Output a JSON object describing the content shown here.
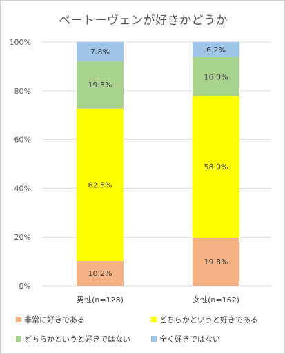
{
  "chart_data": {
    "type": "bar",
    "stacked": true,
    "percent": true,
    "title": "ベートーヴェンが好きかどうか",
    "categories": [
      "男性(n=128)",
      "女性(n=162)"
    ],
    "ylim": [
      0,
      100
    ],
    "yticks": [
      "0%",
      "20%",
      "40%",
      "60%",
      "80%",
      "100%"
    ],
    "grid": true,
    "legend_position": "bottom",
    "series": [
      {
        "name": "非常に好きである",
        "values": [
          10.2,
          19.8
        ],
        "labels": [
          "10.2%",
          "19.8%"
        ],
        "color": "#f4b183"
      },
      {
        "name": "どちらかというと好きである",
        "values": [
          62.5,
          58.0
        ],
        "labels": [
          "62.5%",
          "58.0%"
        ],
        "color": "#ffff00"
      },
      {
        "name": "どちらかというと好きではない",
        "values": [
          19.5,
          16.0
        ],
        "labels": [
          "19.5%",
          "16.0%"
        ],
        "color": "#a9d18e"
      },
      {
        "name": "全く好きではない",
        "values": [
          7.8,
          6.2
        ],
        "labels": [
          "7.8%",
          "6.2%"
        ],
        "color": "#9dc3e6"
      }
    ]
  }
}
